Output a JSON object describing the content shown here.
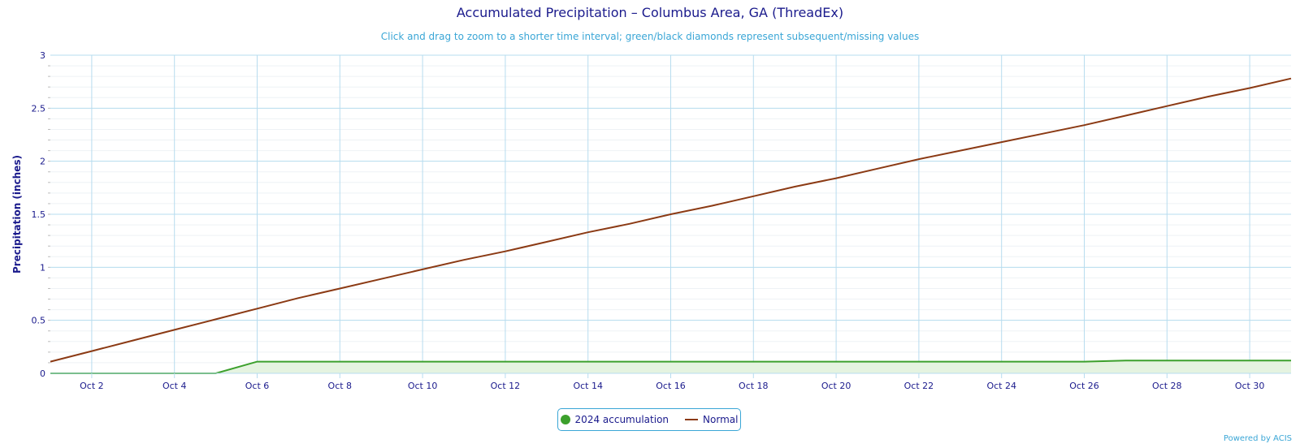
{
  "title": "Accumulated Precipitation – Columbus Area, GA (ThreadEx)",
  "subtitle": "Click and drag to zoom to a shorter time interval; green/black diamonds represent subsequent/missing values",
  "credits": "Powered by ACIS",
  "colors": {
    "accumulation": "#3ca02c",
    "accumulation_fill": "#e5f3e0",
    "normal": "#8b3a14",
    "grid": "#b7dcef",
    "text": "#1a1a8c",
    "accent": "#3aa6d6"
  },
  "chart_data": {
    "type": "line",
    "title": "Accumulated Precipitation – Columbus Area, GA (ThreadEx)",
    "ylabel": "Precipitation (inches)",
    "xlabel": "",
    "ylim": [
      0,
      3
    ],
    "yticks": [
      "0",
      "0.5",
      "1",
      "1.5",
      "2",
      "2.5",
      "3"
    ],
    "x": [
      "Oct 1",
      "Oct 2",
      "Oct 3",
      "Oct 4",
      "Oct 5",
      "Oct 6",
      "Oct 7",
      "Oct 8",
      "Oct 9",
      "Oct 10",
      "Oct 11",
      "Oct 12",
      "Oct 13",
      "Oct 14",
      "Oct 15",
      "Oct 16",
      "Oct 17",
      "Oct 18",
      "Oct 19",
      "Oct 20",
      "Oct 21",
      "Oct 22",
      "Oct 23",
      "Oct 24",
      "Oct 25",
      "Oct 26",
      "Oct 27",
      "Oct 28",
      "Oct 29",
      "Oct 30",
      "Oct 31"
    ],
    "xticks": [
      "Oct 2",
      "Oct 4",
      "Oct 6",
      "Oct 8",
      "Oct 10",
      "Oct 12",
      "Oct 14",
      "Oct 16",
      "Oct 18",
      "Oct 20",
      "Oct 22",
      "Oct 24",
      "Oct 26",
      "Oct 28",
      "Oct 30"
    ],
    "grid": true,
    "legend_position": "bottom-center",
    "series": [
      {
        "name": "2024 accumulation",
        "type": "area",
        "values": [
          0,
          0,
          0,
          0,
          0,
          0.11,
          0.11,
          0.11,
          0.11,
          0.11,
          0.11,
          0.11,
          0.11,
          0.11,
          0.11,
          0.11,
          0.11,
          0.11,
          0.11,
          0.11,
          0.11,
          0.11,
          0.11,
          0.11,
          0.11,
          0.11,
          0.12,
          0.12,
          0.12,
          0.12,
          0.12
        ]
      },
      {
        "name": "Normal",
        "type": "line",
        "values": [
          0.11,
          0.21,
          0.31,
          0.41,
          0.51,
          0.61,
          0.71,
          0.8,
          0.89,
          0.98,
          1.07,
          1.15,
          1.24,
          1.33,
          1.41,
          1.5,
          1.58,
          1.67,
          1.76,
          1.84,
          1.93,
          2.02,
          2.1,
          2.18,
          2.26,
          2.34,
          2.43,
          2.52,
          2.61,
          2.69,
          2.78
        ]
      }
    ]
  }
}
